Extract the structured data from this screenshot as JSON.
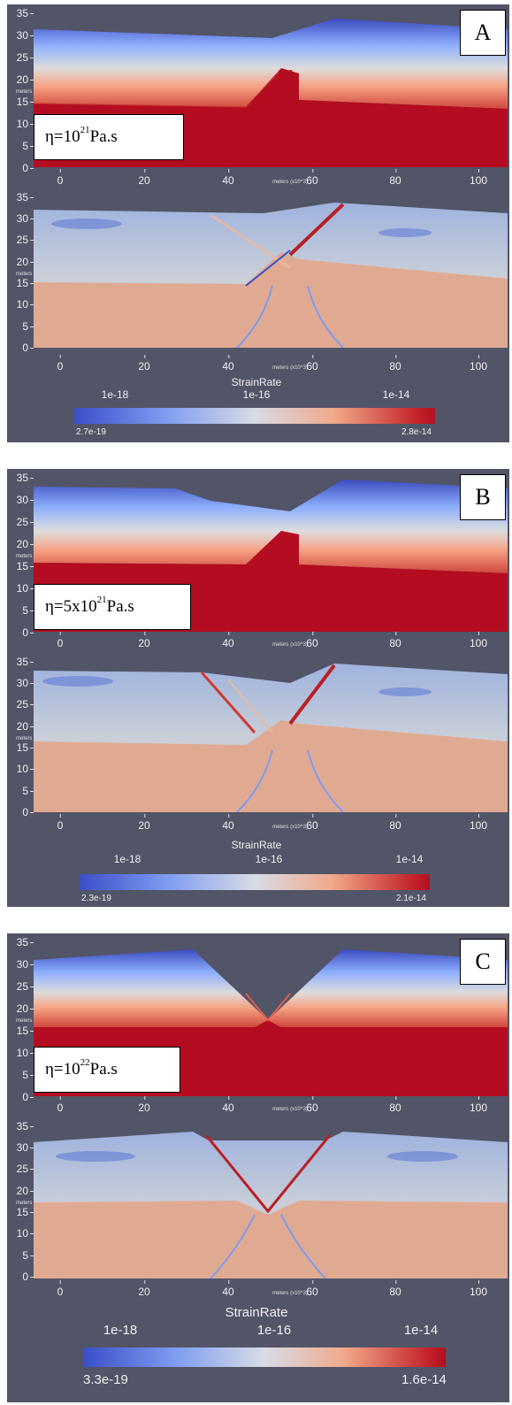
{
  "panels": [
    {
      "tag": "A",
      "viscosity_prefix": "η=10",
      "viscosity_exp": "21",
      "viscosity_suffix": " Pa.s",
      "y_ticks": [
        "35",
        "30",
        "25",
        "20",
        "15",
        "10",
        "5",
        "0"
      ],
      "y_ticks_bottom": [
        "35",
        "30",
        "25",
        "20",
        "15",
        "10",
        "5",
        "0"
      ],
      "y_label": "meters",
      "x_ticks": [
        "0",
        "20",
        "40",
        "60",
        "80",
        "100"
      ],
      "x_label": "meters (x10^3)",
      "cbar_title": "StrainRate",
      "cbar_major": [
        "1e-18",
        "1e-16",
        "1e-14"
      ],
      "cbar_min": "2.7e-19",
      "cbar_max": "2.8e-14"
    },
    {
      "tag": "B",
      "viscosity_prefix": "η=5x10",
      "viscosity_exp": "21",
      "viscosity_suffix": " Pa.s",
      "y_ticks": [
        "35",
        "30",
        "25",
        "20",
        "15",
        "10",
        "5",
        "0"
      ],
      "y_ticks_bottom": [
        "35",
        "30",
        "25",
        "20",
        "15",
        "10",
        "5",
        "0"
      ],
      "y_label": "meters",
      "x_ticks": [
        "0",
        "20",
        "40",
        "60",
        "80",
        "100"
      ],
      "x_label": "meters (x10^3)",
      "cbar_title": "StrainRate",
      "cbar_major": [
        "1e-18",
        "1e-16",
        "1e-14"
      ],
      "cbar_min": "2.3e-19",
      "cbar_max": "2.1e-14"
    },
    {
      "tag": "C",
      "viscosity_prefix": "η=10",
      "viscosity_exp": "22",
      "viscosity_suffix": " Pa.s",
      "y_ticks": [
        "35",
        "30",
        "25",
        "20",
        "15",
        "10",
        "5",
        "0"
      ],
      "y_ticks_bottom": [
        "35",
        "30",
        "25",
        "20",
        "15",
        "10",
        "5",
        "0"
      ],
      "y_label": "meters",
      "x_ticks": [
        "0",
        "20",
        "40",
        "60",
        "80",
        "100"
      ],
      "x_label": "meters (x10^3)",
      "cbar_title": "StrainRate",
      "cbar_major": [
        "1e-18",
        "1e-16",
        "1e-14"
      ],
      "cbar_min": "3.3e-19",
      "cbar_max": "1.6e-14"
    }
  ],
  "colors": {
    "background": "#525468",
    "mantle": "#b40c20",
    "upper_layer": "#3b4cc0",
    "strain_low": "#3a4fc8",
    "strain_mid": "#d8dce6",
    "strain_high": "#c4242a"
  }
}
